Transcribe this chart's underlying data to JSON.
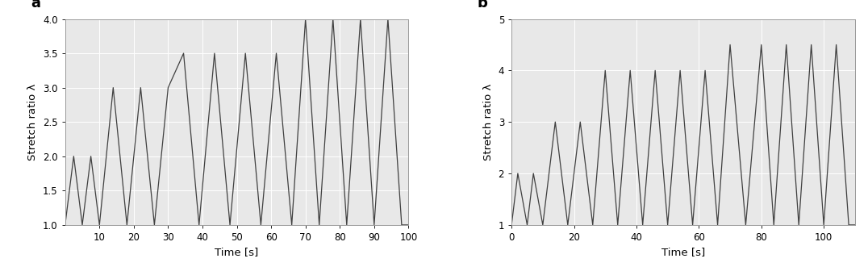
{
  "panel_a": {
    "label": "a",
    "xlabel": "Time [s]",
    "ylabel": "Stretch ratio λ",
    "xlim": [
      0,
      100
    ],
    "ylim": [
      1,
      4
    ],
    "yticks": [
      1,
      1.5,
      2,
      2.5,
      3,
      3.5,
      4
    ],
    "xticks": [
      10,
      20,
      30,
      40,
      50,
      60,
      70,
      80,
      90,
      100
    ],
    "time_points": [
      0,
      2.5,
      5,
      7.5,
      10,
      14,
      18,
      22,
      26,
      30,
      34.5,
      39,
      43.5,
      48,
      52.5,
      57,
      61.5,
      66,
      70,
      74,
      78,
      82,
      86,
      90,
      94,
      98,
      100
    ],
    "lambda_points": [
      1,
      2,
      1,
      2,
      1,
      3,
      1,
      3,
      1,
      3,
      3.5,
      1,
      3.5,
      1,
      3.5,
      1,
      3.5,
      1,
      4,
      1,
      4,
      1,
      4,
      1,
      4,
      1,
      1
    ],
    "line_color": "#404040",
    "line_width": 0.9,
    "bg_color": "#e8e8e8",
    "grid_color": "#ffffff",
    "grid_linewidth": 0.7
  },
  "panel_b": {
    "label": "b",
    "xlabel": "Time [s]",
    "ylabel": "Stretch ratio λ",
    "xlim": [
      0,
      110
    ],
    "ylim": [
      1,
      5
    ],
    "yticks": [
      1,
      2,
      3,
      4,
      5
    ],
    "xticks": [
      0,
      20,
      40,
      60,
      80,
      100
    ],
    "time_points": [
      0,
      2,
      5,
      7,
      10,
      14,
      18,
      22,
      26,
      30,
      34,
      38,
      42,
      46,
      50,
      54,
      58,
      62,
      66,
      70,
      75,
      80,
      84,
      88,
      92,
      96,
      100,
      104,
      108,
      110
    ],
    "lambda_points": [
      1,
      2,
      1,
      2,
      1,
      3,
      1,
      3,
      1,
      4,
      1,
      4,
      1,
      4,
      1,
      4,
      1,
      4,
      1,
      4.5,
      1,
      4.5,
      1,
      4.5,
      1,
      4.5,
      1,
      4.5,
      1,
      1
    ],
    "line_color": "#404040",
    "line_width": 0.9,
    "bg_color": "#e8e8e8",
    "grid_color": "#ffffff",
    "grid_linewidth": 0.7
  }
}
